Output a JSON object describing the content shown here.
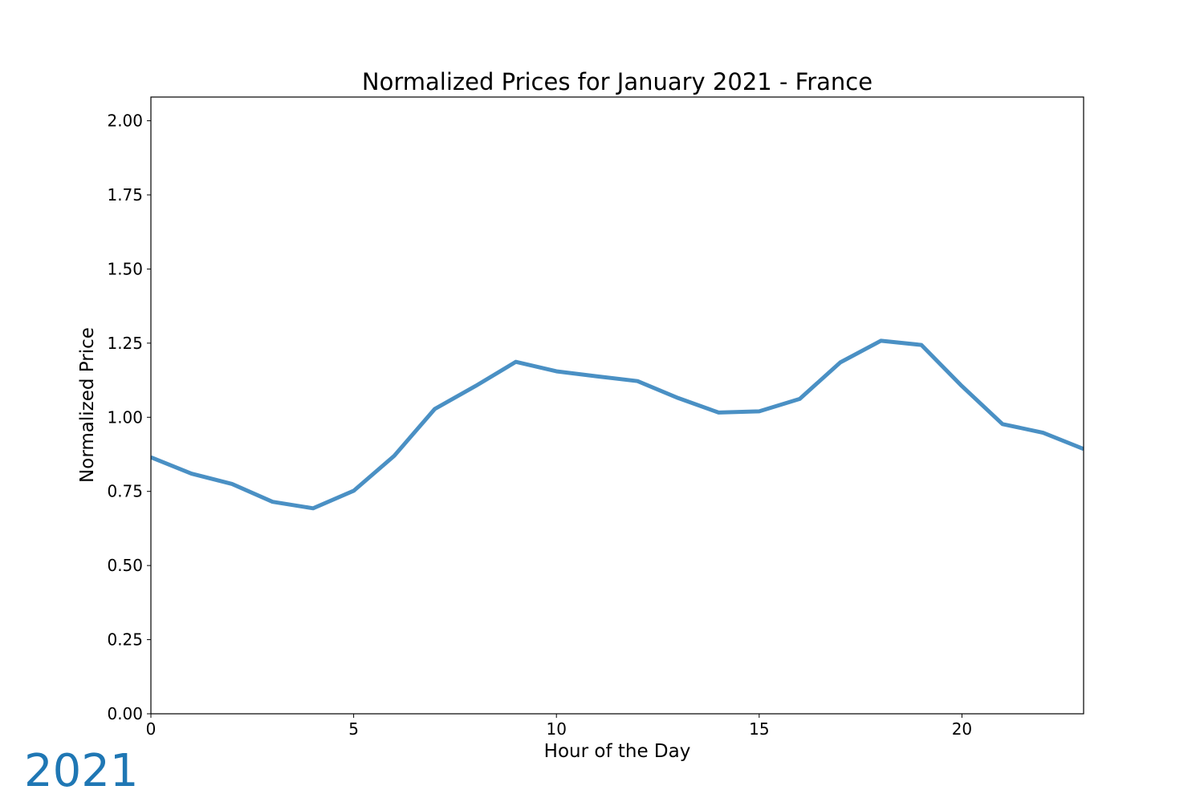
{
  "chart_data": {
    "type": "line",
    "title": "Normalized Prices for January 2021 - France",
    "xlabel": "Hour of the Day",
    "ylabel": "Normalized Price",
    "xlim": [
      0,
      23
    ],
    "ylim": [
      0,
      2.08
    ],
    "xticks": [
      0,
      5,
      10,
      15,
      20
    ],
    "yticks": [
      0.0,
      0.25,
      0.5,
      0.75,
      1.0,
      1.25,
      1.5,
      1.75,
      2.0
    ],
    "xtick_labels": [
      "0",
      "5",
      "10",
      "15",
      "20"
    ],
    "ytick_labels": [
      "0.00",
      "0.25",
      "0.50",
      "0.75",
      "1.00",
      "1.25",
      "1.50",
      "1.75",
      "2.00"
    ],
    "grid": false,
    "series": [
      {
        "color": "#4a90c4",
        "x": [
          0,
          1,
          2,
          3,
          4,
          5,
          6,
          7,
          8,
          9,
          10,
          11,
          12,
          13,
          14,
          15,
          16,
          17,
          18,
          19,
          20,
          21,
          22,
          23
        ],
        "y": [
          0.865,
          0.81,
          0.775,
          0.715,
          0.693,
          0.752,
          0.87,
          1.028,
          1.105,
          1.187,
          1.155,
          1.138,
          1.122,
          1.065,
          1.016,
          1.02,
          1.062,
          1.185,
          1.258,
          1.244,
          1.105,
          0.977,
          0.948,
          0.893
        ]
      }
    ],
    "annotation": {
      "text": "2021",
      "color": "#1f77b4"
    }
  }
}
